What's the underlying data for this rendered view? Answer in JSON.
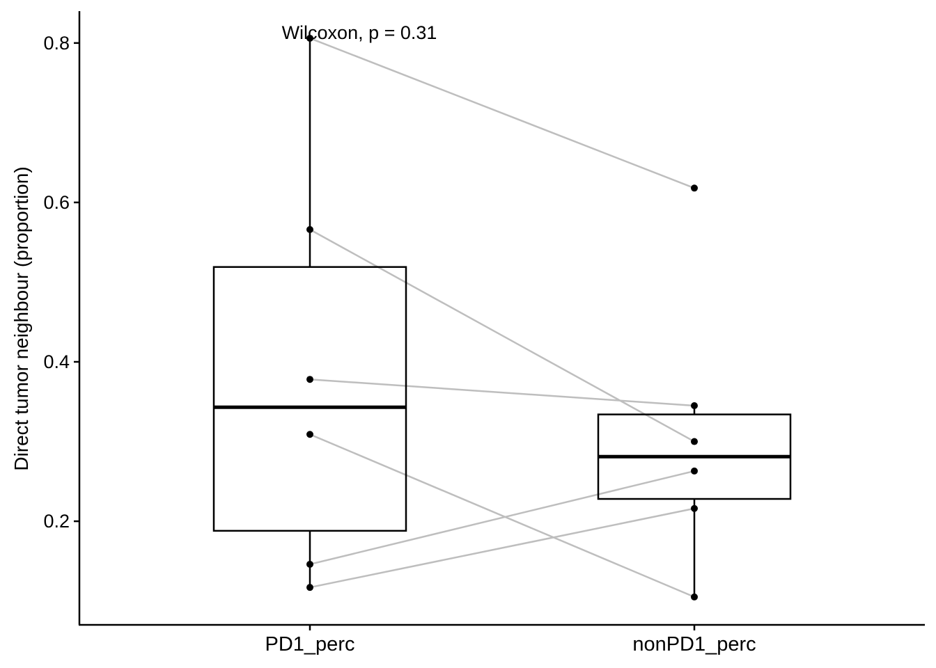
{
  "chart_data": {
    "type": "boxplot",
    "ylabel": "Direct tumor neighbour (proportion)",
    "xlabel": "",
    "ylim": [
      0.07,
      0.84
    ],
    "yticks": [
      0.2,
      0.4,
      0.6,
      0.8
    ],
    "ytick_labels": [
      "0.2",
      "0.4",
      "0.6",
      "0.8"
    ],
    "grid": false,
    "annotation": "Wilcoxon, p = 0.31",
    "categories": [
      "PD1_perc",
      "nonPD1_perc"
    ],
    "boxes": [
      {
        "category": "PD1_perc",
        "whisker_low": 0.117,
        "q1": 0.188,
        "median": 0.343,
        "q3": 0.519,
        "whisker_high": 0.806
      },
      {
        "category": "nonPD1_perc",
        "whisker_low": 0.105,
        "q1": 0.228,
        "median": 0.281,
        "q3": 0.334,
        "whisker_high": 0.345
      }
    ],
    "pairs": [
      {
        "PD1_perc": 0.806,
        "nonPD1_perc": 0.618
      },
      {
        "PD1_perc": 0.566,
        "nonPD1_perc": 0.3
      },
      {
        "PD1_perc": 0.378,
        "nonPD1_perc": 0.345
      },
      {
        "PD1_perc": 0.309,
        "nonPD1_perc": 0.105
      },
      {
        "PD1_perc": 0.146,
        "nonPD1_perc": 0.263
      },
      {
        "PD1_perc": 0.117,
        "nonPD1_perc": 0.216
      }
    ],
    "colors": {
      "box": "#000000",
      "pair_line": "#bebebe",
      "point": "#000000"
    }
  }
}
